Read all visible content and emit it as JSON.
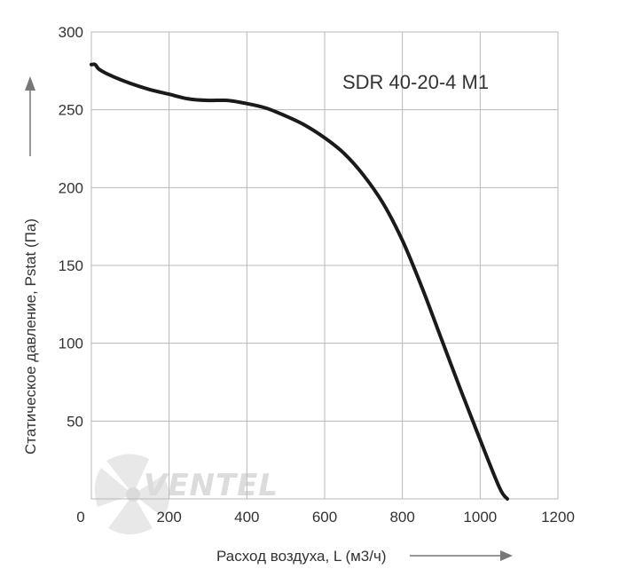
{
  "chart_data": {
    "type": "line",
    "title": "SDR 40-20-4 M1",
    "xlabel": "Расход воздуха, L (м3/ч)",
    "ylabel": "Статическое давление, Pstat (Па)",
    "xlim": [
      0,
      1200
    ],
    "ylim": [
      0,
      300
    ],
    "x_ticks": [
      0,
      200,
      400,
      600,
      800,
      1000,
      1200
    ],
    "y_ticks": [
      50,
      100,
      150,
      200,
      250,
      300
    ],
    "grid": true,
    "legend": "none",
    "series": [
      {
        "x": [
          0,
          10,
          20,
          50,
          100,
          150,
          200,
          250,
          300,
          350,
          400,
          450,
          500,
          550,
          600,
          650,
          700,
          750,
          800,
          850,
          900,
          950,
          1000,
          1050,
          1070
        ],
        "y": [
          279,
          279,
          276,
          272,
          267,
          263,
          260,
          257,
          256,
          256,
          254,
          251,
          246,
          240,
          232,
          222,
          208,
          190,
          166,
          136,
          103,
          70,
          38,
          7,
          -3
        ]
      }
    ],
    "line_color": "#1a1a1a"
  },
  "watermark": {
    "text": "VENTEL"
  }
}
